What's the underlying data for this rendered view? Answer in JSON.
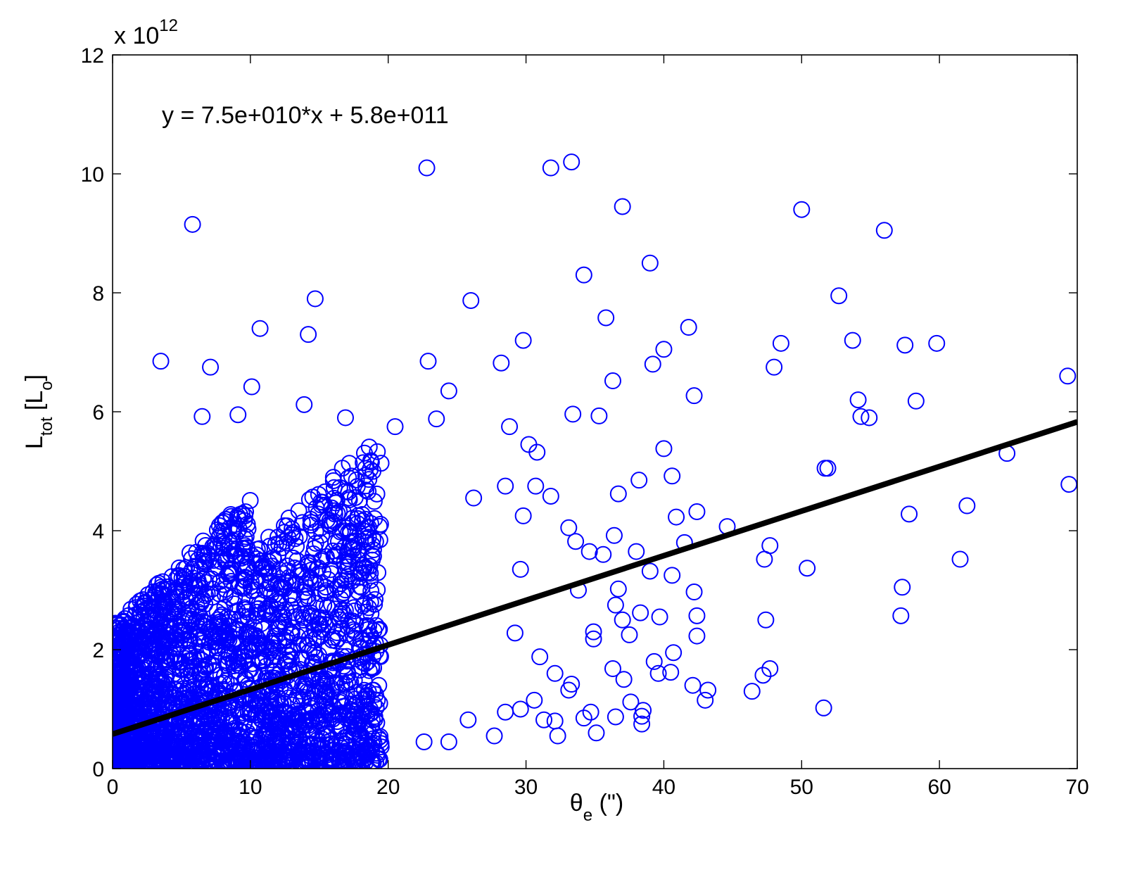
{
  "chart_data": {
    "type": "scatter",
    "title": "",
    "xlabel": {
      "main": "θ",
      "sub": "e",
      "rest": " (\")"
    },
    "ylabel": {
      "main": "L",
      "sub": "tot",
      "mid": " [L",
      "sub2": "o",
      "end": "]"
    },
    "exponent_label": "x 10",
    "exponent_power": "12",
    "xlim": [
      0,
      70
    ],
    "ylim": [
      0,
      12
    ],
    "xticks": [
      0,
      10,
      20,
      30,
      40,
      50,
      60,
      70
    ],
    "yticks": [
      0,
      2,
      4,
      6,
      8,
      10,
      12
    ],
    "xtick_labels": [
      "0",
      "10",
      "20",
      "30",
      "40",
      "50",
      "60",
      "70"
    ],
    "ytick_labels": [
      "0",
      "2",
      "4",
      "6",
      "8",
      "10",
      "12"
    ],
    "y_units_note": "values in units of 10^12",
    "grid": false,
    "marker": "open-circle",
    "marker_color": "#0000ff",
    "fit_line": {
      "slope": 0.075,
      "intercept": 0.58,
      "x_range": [
        0,
        70
      ],
      "color": "#000000"
    },
    "annotation": "y = 7.5e+010*x + 5.8e+011",
    "series": [
      {
        "points": [
          [
            22.8,
            10.1
          ],
          [
            31.8,
            10.1
          ],
          [
            33.3,
            10.2
          ],
          [
            5.8,
            9.15
          ],
          [
            37.0,
            9.45
          ],
          [
            50.0,
            9.4
          ],
          [
            56.0,
            9.05
          ],
          [
            39.0,
            8.5
          ],
          [
            34.2,
            8.3
          ],
          [
            52.7,
            7.95
          ],
          [
            14.7,
            7.9
          ],
          [
            26.0,
            7.87
          ],
          [
            35.8,
            7.58
          ],
          [
            10.7,
            7.4
          ],
          [
            14.2,
            7.3
          ],
          [
            41.8,
            7.42
          ],
          [
            29.8,
            7.2
          ],
          [
            53.7,
            7.2
          ],
          [
            48.5,
            7.15
          ],
          [
            57.5,
            7.12
          ],
          [
            59.8,
            7.15
          ],
          [
            40.0,
            7.05
          ],
          [
            3.5,
            6.85
          ],
          [
            7.1,
            6.75
          ],
          [
            22.9,
            6.85
          ],
          [
            28.2,
            6.82
          ],
          [
            39.2,
            6.8
          ],
          [
            48.0,
            6.75
          ],
          [
            69.3,
            6.6
          ],
          [
            36.3,
            6.52
          ],
          [
            10.1,
            6.42
          ],
          [
            24.4,
            6.35
          ],
          [
            13.9,
            6.12
          ],
          [
            42.2,
            6.27
          ],
          [
            58.3,
            6.18
          ],
          [
            54.1,
            6.2
          ],
          [
            54.3,
            5.92
          ],
          [
            54.9,
            5.9
          ],
          [
            33.4,
            5.96
          ],
          [
            35.3,
            5.93
          ],
          [
            23.5,
            5.88
          ],
          [
            16.9,
            5.9
          ],
          [
            28.8,
            5.75
          ],
          [
            20.5,
            5.75
          ],
          [
            9.1,
            5.95
          ],
          [
            6.5,
            5.92
          ],
          [
            30.2,
            5.45
          ],
          [
            40.0,
            5.38
          ],
          [
            30.8,
            5.32
          ],
          [
            51.7,
            5.05
          ],
          [
            51.9,
            5.05
          ],
          [
            64.9,
            5.3
          ],
          [
            40.6,
            4.92
          ],
          [
            38.2,
            4.85
          ],
          [
            28.5,
            4.75
          ],
          [
            30.7,
            4.75
          ],
          [
            69.4,
            4.78
          ],
          [
            36.7,
            4.62
          ],
          [
            26.2,
            4.55
          ],
          [
            31.8,
            4.58
          ],
          [
            62.0,
            4.42
          ],
          [
            57.8,
            4.28
          ],
          [
            40.9,
            4.23
          ],
          [
            42.4,
            4.32
          ],
          [
            44.6,
            4.07
          ],
          [
            33.1,
            4.05
          ],
          [
            36.4,
            3.92
          ],
          [
            29.8,
            4.25
          ],
          [
            33.6,
            3.82
          ],
          [
            41.5,
            3.8
          ],
          [
            47.7,
            3.75
          ],
          [
            38.0,
            3.65
          ],
          [
            34.6,
            3.65
          ],
          [
            35.6,
            3.6
          ],
          [
            47.3,
            3.52
          ],
          [
            61.5,
            3.52
          ],
          [
            50.4,
            3.37
          ],
          [
            39.0,
            3.32
          ],
          [
            33.8,
            3.0
          ],
          [
            42.2,
            2.97
          ],
          [
            36.7,
            3.02
          ],
          [
            40.6,
            3.25
          ],
          [
            57.3,
            3.05
          ],
          [
            29.6,
            3.35
          ],
          [
            36.5,
            2.75
          ],
          [
            38.3,
            2.62
          ],
          [
            42.4,
            2.57
          ],
          [
            39.7,
            2.55
          ],
          [
            37.0,
            2.5
          ],
          [
            47.4,
            2.5
          ],
          [
            57.2,
            2.57
          ],
          [
            37.5,
            2.25
          ],
          [
            42.4,
            2.23
          ],
          [
            34.9,
            2.3
          ],
          [
            34.9,
            2.18
          ],
          [
            29.2,
            2.28
          ],
          [
            40.7,
            1.95
          ],
          [
            39.3,
            1.8
          ],
          [
            47.7,
            1.68
          ],
          [
            47.2,
            1.57
          ],
          [
            39.6,
            1.6
          ],
          [
            40.5,
            1.62
          ],
          [
            36.3,
            1.68
          ],
          [
            37.1,
            1.5
          ],
          [
            42.1,
            1.4
          ],
          [
            43.2,
            1.32
          ],
          [
            46.4,
            1.3
          ],
          [
            43.0,
            1.15
          ],
          [
            37.6,
            1.12
          ],
          [
            38.5,
            0.98
          ],
          [
            38.4,
            0.88
          ],
          [
            38.4,
            0.75
          ],
          [
            36.5,
            0.87
          ],
          [
            35.1,
            0.6
          ],
          [
            34.7,
            0.95
          ],
          [
            34.2,
            0.85
          ],
          [
            51.6,
            1.02
          ],
          [
            32.3,
            0.55
          ],
          [
            31.3,
            0.82
          ],
          [
            32.1,
            0.8
          ],
          [
            30.6,
            1.15
          ],
          [
            33.3,
            1.42
          ],
          [
            33.1,
            1.32
          ],
          [
            32.1,
            1.6
          ],
          [
            31.0,
            1.88
          ],
          [
            29.6,
            1.0
          ],
          [
            28.5,
            0.95
          ],
          [
            27.7,
            0.55
          ],
          [
            25.8,
            0.82
          ],
          [
            22.6,
            0.45
          ],
          [
            24.4,
            0.45
          ]
        ]
      }
    ]
  }
}
